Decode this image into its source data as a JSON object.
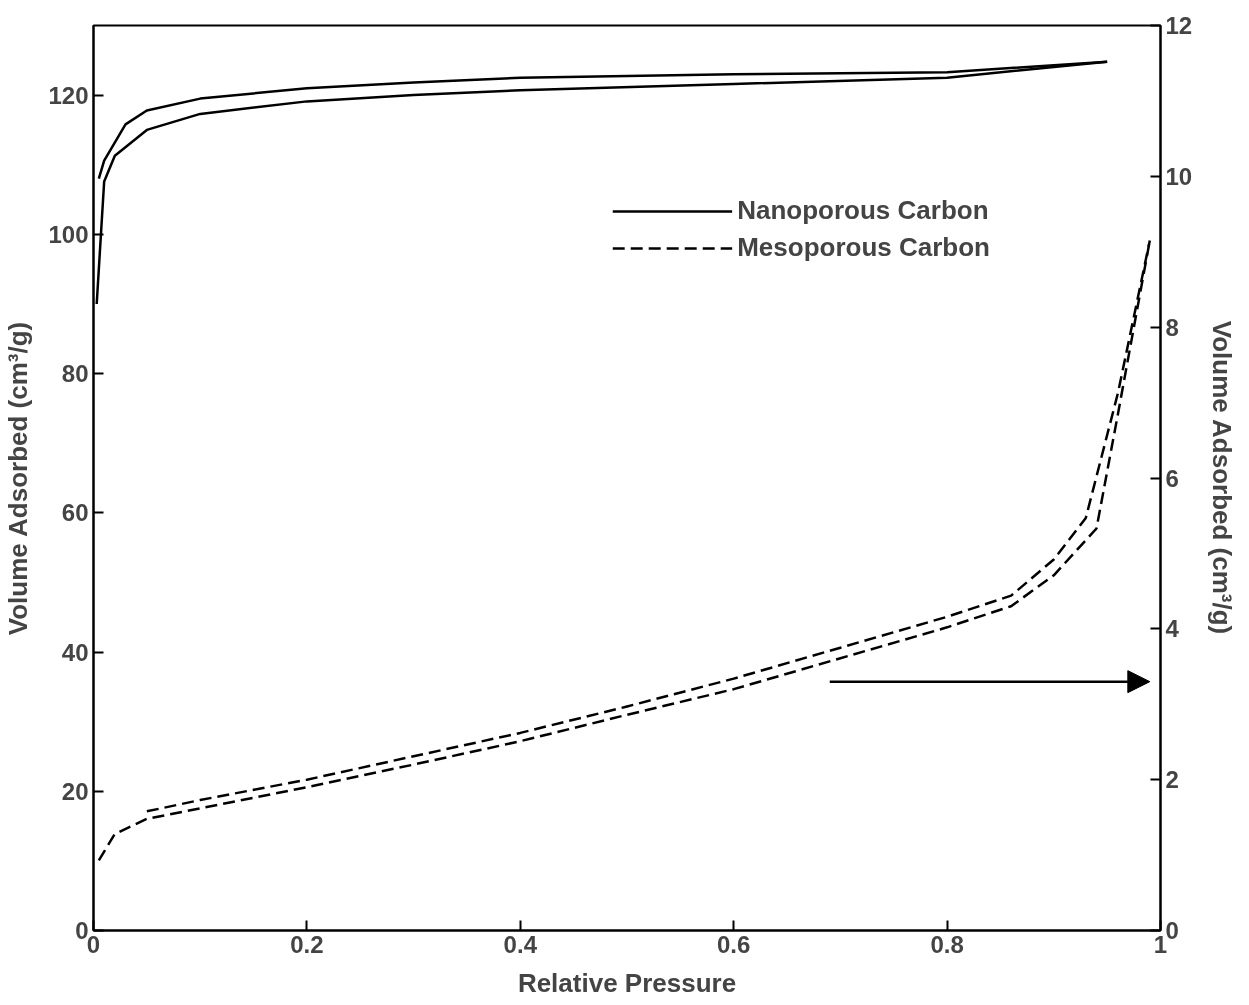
{
  "chart_data": {
    "type": "line",
    "xlabel": "Relative Pressure",
    "ylabel": "Volume Adsorbed (cm³/g)",
    "y2label": "Volume Adsorbed (cm³/g)",
    "xlim": [
      0,
      1
    ],
    "xticks": [
      0,
      0.2,
      0.4,
      0.6,
      0.8,
      1
    ],
    "ylim": [
      0,
      130
    ],
    "yticks": [
      0,
      20,
      40,
      60,
      80,
      100,
      120
    ],
    "y2lim": [
      0,
      12
    ],
    "y2ticks": [
      0,
      2,
      4,
      6,
      8,
      10,
      12
    ],
    "grid": false,
    "legend": "top right",
    "marker": "none",
    "series": [
      {
        "name": "Nanoporous Carbon",
        "color": "#000000",
        "line_style": "solid",
        "x": [
          0.003,
          0.01,
          0.02,
          0.05,
          0.1,
          0.2,
          0.3,
          0.4,
          0.6,
          0.8,
          0.95
        ],
        "values": [
          90,
          107.6,
          111.3,
          115,
          117.3,
          119.1,
          120,
          120.7,
          121.6,
          122.5,
          124.8
        ]
      },
      {
        "color": "#000000",
        "line_style": "solid",
        "x": [
          0.005,
          0.01,
          0.03,
          0.05,
          0.1,
          0.2,
          0.3,
          0.4,
          0.6,
          0.8,
          0.95
        ],
        "values": [
          108,
          110.6,
          115.8,
          117.8,
          119.5,
          121,
          121.8,
          122.5,
          123,
          123.3,
          124.8
        ]
      },
      {
        "name": "Mesoporous Carbon",
        "color": "#000000",
        "line_style": "dashed",
        "axis": "y2",
        "x": [
          0.005,
          0.02,
          0.05,
          0.1,
          0.2,
          0.3,
          0.4,
          0.5,
          0.6,
          0.7,
          0.8,
          0.86,
          0.9,
          0.94,
          0.96,
          0.99
        ],
        "values": [
          0.93,
          1.28,
          1.48,
          1.62,
          1.9,
          2.2,
          2.51,
          2.86,
          3.2,
          3.61,
          4.02,
          4.3,
          4.71,
          5.33,
          6.84,
          9.15
        ]
      },
      {
        "color": "#000000",
        "line_style": "dashed",
        "axis": "y2",
        "x": [
          0.05,
          0.1,
          0.2,
          0.3,
          0.4,
          0.5,
          0.6,
          0.7,
          0.8,
          0.86,
          0.9,
          0.93,
          0.96,
          0.99
        ],
        "values": [
          1.58,
          1.73,
          2.0,
          2.31,
          2.62,
          2.97,
          3.34,
          3.75,
          4.16,
          4.44,
          4.92,
          5.47,
          7.12,
          9.15
        ]
      }
    ]
  }
}
